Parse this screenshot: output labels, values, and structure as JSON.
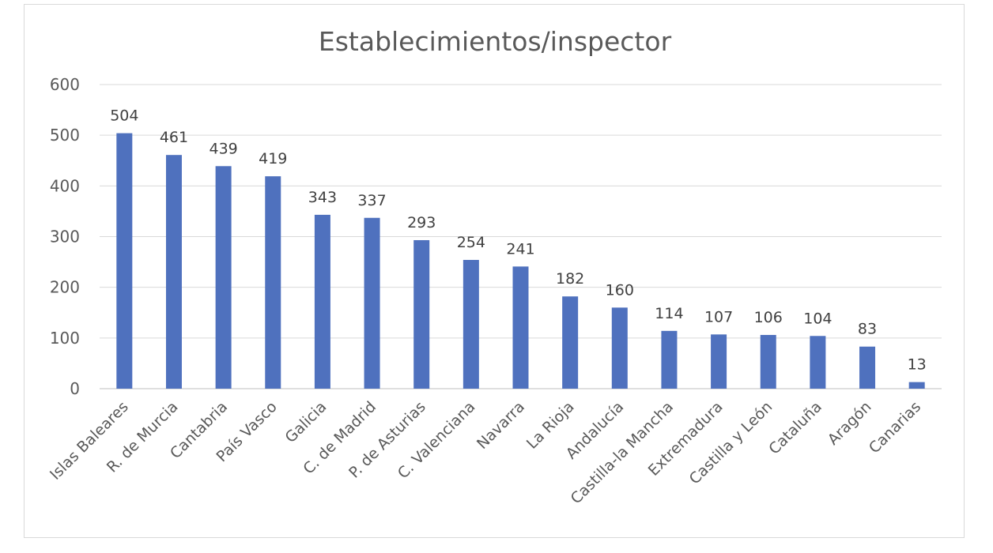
{
  "chart_data": {
    "type": "bar",
    "title": "Establecimientos/inspector",
    "xlabel": "",
    "ylabel": "",
    "ylim": [
      0,
      600
    ],
    "yticks": [
      0,
      100,
      200,
      300,
      400,
      500,
      600
    ],
    "grid": true,
    "legend": "none",
    "bar_color": "#4f71be",
    "categories": [
      "Islas Baleares",
      "R. de Murcia",
      "Cantabria",
      "País Vasco",
      "Galicia",
      "C. de Madrid",
      "P. de Asturias",
      "C. Valenciana",
      "Navarra",
      "La Rioja",
      "Andalucía",
      "Castilla-la Mancha",
      "Extremadura",
      "Castilla y León",
      "Cataluña",
      "Aragón",
      "Canarias"
    ],
    "values": [
      504,
      461,
      439,
      419,
      343,
      337,
      293,
      254,
      241,
      182,
      160,
      114,
      107,
      106,
      104,
      83,
      13
    ]
  }
}
